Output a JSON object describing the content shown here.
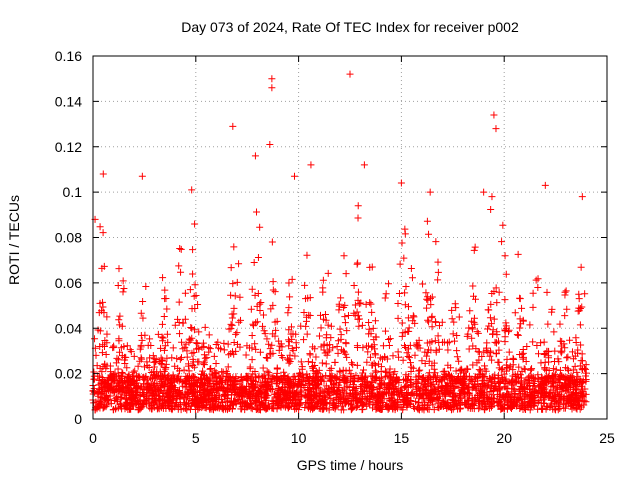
{
  "chart_data": {
    "type": "scatter",
    "title": "Day 073 of 2024, Rate Of TEC Index for receiver p002",
    "xlabel": "GPS time / hours",
    "ylabel": "ROTI / TECUs",
    "xlim": [
      0,
      25
    ],
    "ylim": [
      0,
      0.16
    ],
    "xticks": [
      0,
      5,
      10,
      15,
      20,
      25
    ],
    "xtick_labels": [
      "0",
      "5",
      "10",
      "15",
      "20",
      "25"
    ],
    "yticks": [
      0,
      0.02,
      0.04,
      0.06,
      0.08,
      0.1,
      0.12,
      0.14,
      0.16
    ],
    "ytick_labels": [
      "0",
      "0.02",
      "0.04",
      "0.06",
      "0.08",
      "0.1",
      "0.12",
      "0.14",
      "0.16"
    ],
    "grid": true,
    "marker": "+",
    "color": "#ff0000",
    "data_span_hours": [
      0,
      24
    ],
    "noted_peaks": [
      {
        "x": 12.5,
        "y": 0.152
      },
      {
        "x": 8.7,
        "y": 0.15
      },
      {
        "x": 8.7,
        "y": 0.146
      },
      {
        "x": 19.5,
        "y": 0.134
      },
      {
        "x": 6.8,
        "y": 0.129
      },
      {
        "x": 19.6,
        "y": 0.128
      },
      {
        "x": 8.6,
        "y": 0.121
      },
      {
        "x": 13.2,
        "y": 0.112
      },
      {
        "x": 10.6,
        "y": 0.112
      },
      {
        "x": 7.9,
        "y": 0.116
      },
      {
        "x": 0.5,
        "y": 0.108
      },
      {
        "x": 2.4,
        "y": 0.107
      },
      {
        "x": 9.8,
        "y": 0.107
      },
      {
        "x": 15.0,
        "y": 0.104
      },
      {
        "x": 22.0,
        "y": 0.103
      },
      {
        "x": 4.8,
        "y": 0.101
      },
      {
        "x": 16.4,
        "y": 0.1
      },
      {
        "x": 19.0,
        "y": 0.1
      },
      {
        "x": 23.8,
        "y": 0.098
      },
      {
        "x": 12.9,
        "y": 0.094
      },
      {
        "x": 0.1,
        "y": 0.088
      }
    ],
    "activity_bands": [
      {
        "center": 0.4,
        "peak": 0.085
      },
      {
        "center": 1.3,
        "peak": 0.075
      },
      {
        "center": 2.5,
        "peak": 0.07
      },
      {
        "center": 3.4,
        "peak": 0.06
      },
      {
        "center": 4.3,
        "peak": 0.08
      },
      {
        "center": 4.9,
        "peak": 0.085
      },
      {
        "center": 5.6,
        "peak": 0.05
      },
      {
        "center": 6.9,
        "peak": 0.085
      },
      {
        "center": 8.0,
        "peak": 0.095
      },
      {
        "center": 8.7,
        "peak": 0.08
      },
      {
        "center": 9.6,
        "peak": 0.065
      },
      {
        "center": 10.4,
        "peak": 0.09
      },
      {
        "center": 11.3,
        "peak": 0.075
      },
      {
        "center": 12.2,
        "peak": 0.08
      },
      {
        "center": 12.9,
        "peak": 0.09
      },
      {
        "center": 13.5,
        "peak": 0.07
      },
      {
        "center": 14.3,
        "peak": 0.065
      },
      {
        "center": 15.1,
        "peak": 0.085
      },
      {
        "center": 15.6,
        "peak": 0.07
      },
      {
        "center": 16.2,
        "peak": 0.09
      },
      {
        "center": 16.7,
        "peak": 0.08
      },
      {
        "center": 17.6,
        "peak": 0.06
      },
      {
        "center": 18.5,
        "peak": 0.08
      },
      {
        "center": 19.4,
        "peak": 0.095
      },
      {
        "center": 20.0,
        "peak": 0.085
      },
      {
        "center": 20.7,
        "peak": 0.07
      },
      {
        "center": 21.5,
        "peak": 0.07
      },
      {
        "center": 22.2,
        "peak": 0.065
      },
      {
        "center": 22.9,
        "peak": 0.06
      },
      {
        "center": 23.7,
        "peak": 0.08
      }
    ],
    "baseline_level": 0.015,
    "point_density_per_hour": 150
  }
}
